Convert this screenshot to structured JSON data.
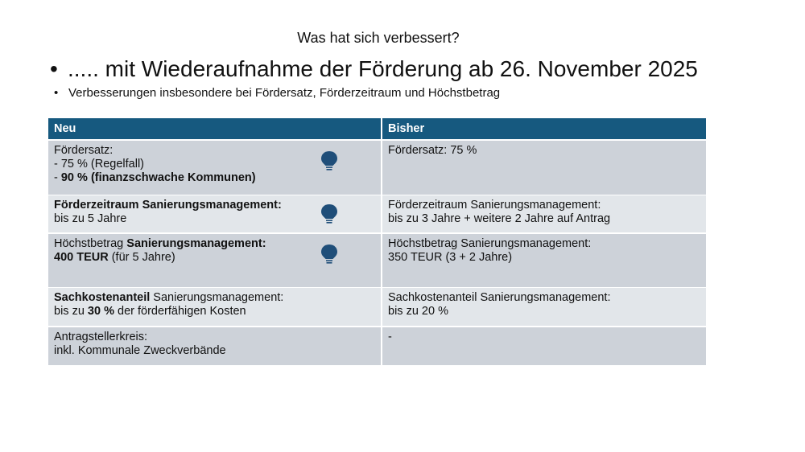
{
  "slide": {
    "title": "Was hat sich verbessert?",
    "bullets": [
      "..... mit Wiederaufnahme der Förderung ab 26. November 2025",
      "Verbesserungen insbesondere bei Fördersatz, Förderzeitraum und Höchstbetrag"
    ],
    "table": {
      "header": [
        "Neu",
        "Bisher"
      ],
      "rows": [
        [
          [
            [
              {
                "text": "Fördersatz:",
                "bold": false
              }
            ],
            [
              {
                "text": "- 75 % (Regelfall)",
                "bold": false
              }
            ],
            [
              {
                "text": "- ",
                "bold": false
              },
              {
                "text": "90 % (finanzschwache Kommunen)",
                "bold": true
              }
            ]
          ],
          [
            [
              {
                "text": "Fördersatz: 75 %",
                "bold": false
              }
            ]
          ]
        ],
        [
          [
            [
              {
                "text": "Förderzeitraum Sanierungsmanagement:",
                "bold": true
              }
            ],
            [
              {
                "text": "bis zu 5 Jahre",
                "bold": false
              }
            ]
          ],
          [
            [
              {
                "text": "Förderzeitraum Sanierungsmanagement:",
                "bold": false
              }
            ],
            [
              {
                "text": "bis zu 3 Jahre + weitere 2 Jahre auf Antrag",
                "bold": false
              }
            ]
          ]
        ],
        [
          [
            [
              {
                "text": "Höchstbetrag ",
                "bold": false
              },
              {
                "text": "Sanierungsmanagement:",
                "bold": true
              }
            ],
            [
              {
                "text": "400 TEUR",
                "bold": true
              },
              {
                "text": " (für 5 Jahre)",
                "bold": false
              }
            ]
          ],
          [
            [
              {
                "text": "Höchstbetrag Sanierungsmanagement:",
                "bold": false
              }
            ],
            [
              {
                "text": "350 TEUR (3 + 2 Jahre)",
                "bold": false
              }
            ]
          ]
        ],
        [
          [
            [
              {
                "text": "Sachkostenanteil",
                "bold": true
              },
              {
                "text": " Sanierungsmanagement:",
                "bold": false
              }
            ],
            [
              {
                "text": "bis zu ",
                "bold": false
              },
              {
                "text": "30 %",
                "bold": true
              },
              {
                "text": " der förderfähigen Kosten",
                "bold": false
              }
            ]
          ],
          [
            [
              {
                "text": "Sachkostenanteil Sanierungsmanagement:",
                "bold": false
              }
            ],
            [
              {
                "text": "bis zu 20 %",
                "bold": false
              }
            ]
          ]
        ],
        [
          [
            [
              {
                "text": "Antragstellerkreis:",
                "bold": false
              }
            ],
            [
              {
                "text": "inkl. Kommunale Zweckverbände",
                "bold": false
              }
            ]
          ],
          [
            [
              {
                "text": "-",
                "bold": false
              }
            ]
          ]
        ]
      ]
    }
  }
}
